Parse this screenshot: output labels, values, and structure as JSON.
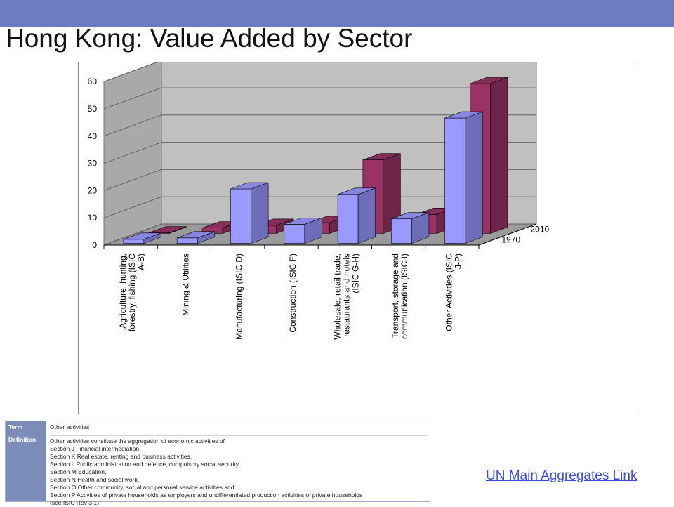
{
  "slide": {
    "title": "Hong Kong: Value Added by Sector",
    "link_text": "UN Main Aggregates Link"
  },
  "colors": {
    "top_bar": "#6b7cbf",
    "series_1970": "#9999ff",
    "series_2010": "#993366",
    "wall": "#c0c0c0",
    "floor": "#9a9a9a"
  },
  "chart_data": {
    "type": "bar",
    "subtype": "3d-clustered-depth",
    "categories": [
      "Agriculture, hunting, forestry, fishing (ISIC A-B)",
      "Mining & Utilities",
      "Manufacturing (ISIC D)",
      "Construction (ISIC F)",
      "Wholesale, retail trade, restaurants and hotels (ISIC G-H)",
      "Transport, storage and communication (ISIC I)",
      "Other Activities (ISIC J-P)"
    ],
    "series": [
      {
        "name": "1970",
        "values": [
          1.5,
          2,
          20,
          7,
          18,
          9,
          46
        ]
      },
      {
        "name": "2010",
        "values": [
          0.2,
          2,
          3,
          4,
          27,
          7,
          55
        ]
      }
    ],
    "ylim": [
      0,
      60
    ],
    "yticks": [
      "0",
      "10",
      "20",
      "30",
      "40",
      "50",
      "60"
    ],
    "grid": true
  },
  "definition": {
    "term_label": "Term",
    "term_value": "Other activities",
    "definition_label": "Definition",
    "lines": [
      "Other activities constitute the aggregation of economic activities of",
      "Section J Financial intermediation,",
      "Section K Real estate, renting and business activities,",
      "Section L Public administration and defence, compulsory social security,",
      "Section M Education,",
      "Section N Health and social work,",
      "Section O Other community, social and personal service activities and",
      "Section P Activities of private households as employers and undifferentiated production activities of private households",
      "(see ISIC Rev 3.1)."
    ]
  }
}
